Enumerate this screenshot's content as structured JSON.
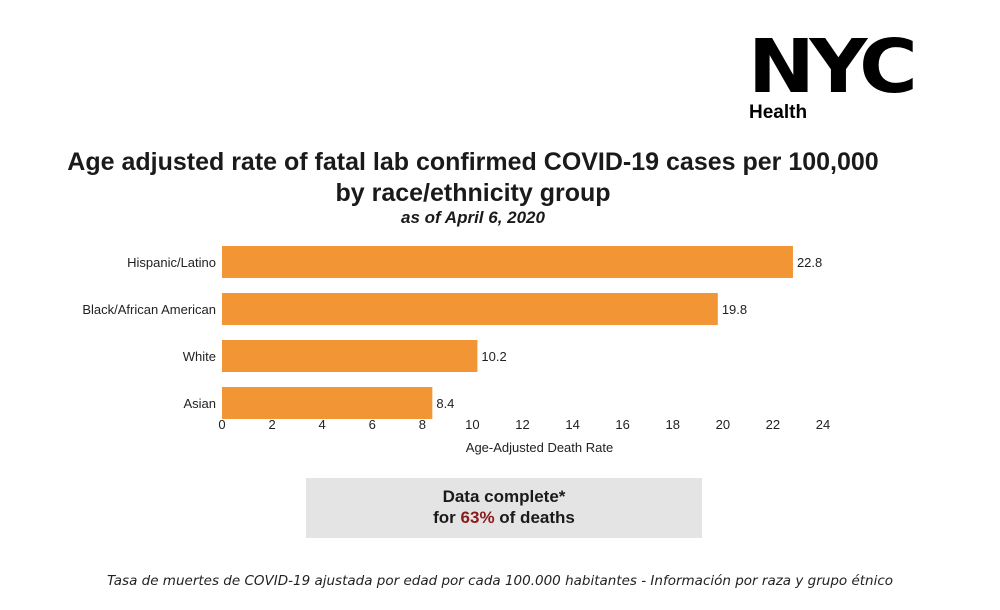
{
  "logo": {
    "mark": "NYC",
    "sub": "Health"
  },
  "chart_data": {
    "type": "bar",
    "orientation": "horizontal",
    "title": "Age adjusted rate of fatal lab confirmed COVID-19 cases per 100,000 by race/ethnicity group",
    "subtitle": "as of April 6, 2020",
    "categories": [
      "Hispanic/Latino",
      "Black/African American",
      "White",
      "Asian"
    ],
    "values": [
      22.8,
      19.8,
      10.2,
      8.4
    ],
    "value_labels": [
      "22.8",
      "19.8",
      "10.2",
      "8.4"
    ],
    "xlabel": "Age-Adjusted Death Rate",
    "ylabel": "",
    "xlim": [
      0,
      24
    ],
    "xticks": [
      0,
      2,
      4,
      6,
      8,
      10,
      12,
      14,
      16,
      18,
      20,
      22,
      24
    ],
    "grid": false,
    "bar_color": "#f29535"
  },
  "note": {
    "line1": "Data complete*",
    "line2_prefix": "for ",
    "line2_pct": "63%",
    "line2_suffix": " of deaths"
  },
  "caption": "Tasa de muertes de COVID-19 ajustada por edad por cada 100.000 habitantes - Información por raza y grupo étnico"
}
